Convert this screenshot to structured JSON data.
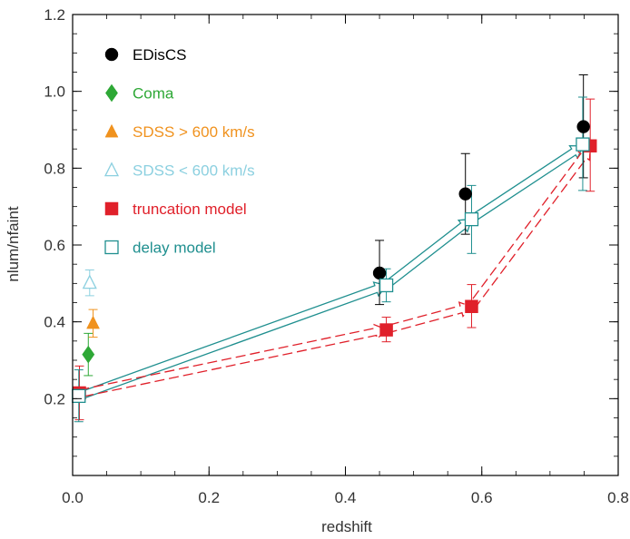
{
  "chart_data": {
    "type": "scatter",
    "xlabel": "redshift",
    "ylabel": "nlum/nfaint",
    "xlim": [
      0.0,
      0.8
    ],
    "ylim": [
      0.0,
      1.2
    ],
    "x_ticks": [
      0.0,
      0.2,
      0.4,
      0.6,
      0.8
    ],
    "x_tick_labels": [
      "0.0",
      "0.2",
      "0.4",
      "0.6",
      "0.8"
    ],
    "y_ticks": [
      0.2,
      0.4,
      0.6,
      0.8,
      1.0,
      1.2
    ],
    "y_tick_labels": [
      "0.2",
      "0.4",
      "0.6",
      "0.8",
      "1.0",
      "1.2"
    ],
    "grid": false,
    "legend_position": "top-left",
    "series": [
      {
        "name": "EDisCS",
        "marker": "filled-circle",
        "color": "#000000",
        "points": [
          {
            "x": 0.45,
            "y": 0.527,
            "ylo": 0.445,
            "yhi": 0.612
          },
          {
            "x": 0.576,
            "y": 0.733,
            "ylo": 0.628,
            "yhi": 0.838
          },
          {
            "x": 0.749,
            "y": 0.908,
            "ylo": 0.775,
            "yhi": 1.043
          }
        ]
      },
      {
        "name": "Coma",
        "marker": "filled-diamond",
        "color": "#2ea836",
        "points": [
          {
            "x": 0.023,
            "y": 0.315,
            "ylo": 0.26,
            "yhi": 0.37
          }
        ]
      },
      {
        "name": "SDSS > 600 km/s",
        "marker": "filled-triangle",
        "color": "#f0921e",
        "points": [
          {
            "x": 0.03,
            "y": 0.397,
            "ylo": 0.36,
            "yhi": 0.432
          }
        ]
      },
      {
        "name": "SDSS < 600 km/s",
        "marker": "open-triangle",
        "color": "#8cd0e0",
        "points": [
          {
            "x": 0.025,
            "y": 0.502,
            "ylo": 0.468,
            "yhi": 0.535
          }
        ]
      },
      {
        "name": "truncation model",
        "marker": "filled-square",
        "color": "#e0202a",
        "points": [
          {
            "x": 0.01,
            "y": 0.215,
            "ylo": 0.145,
            "yhi": 0.285
          },
          {
            "x": 0.46,
            "y": 0.379,
            "ylo": 0.348,
            "yhi": 0.412
          },
          {
            "x": 0.585,
            "y": 0.44,
            "ylo": 0.385,
            "yhi": 0.497
          },
          {
            "x": 0.759,
            "y": 0.858,
            "ylo": 0.74,
            "yhi": 0.98
          }
        ]
      },
      {
        "name": "delay model",
        "marker": "open-square",
        "color": "#1f8f8f",
        "points": [
          {
            "x": 0.009,
            "y": 0.207,
            "ylo": 0.14,
            "yhi": 0.275
          },
          {
            "x": 0.46,
            "y": 0.495,
            "ylo": 0.452,
            "yhi": 0.538
          },
          {
            "x": 0.585,
            "y": 0.667,
            "ylo": 0.578,
            "yhi": 0.755
          },
          {
            "x": 0.748,
            "y": 0.862,
            "ylo": 0.742,
            "yhi": 0.985
          }
        ]
      }
    ],
    "arrow_paths": [
      {
        "name": "delay model",
        "color": "#1f8f8f",
        "style": "solid-double",
        "points": [
          [
            0.015,
            0.21
          ],
          [
            0.46,
            0.495
          ],
          [
            0.585,
            0.667
          ],
          [
            0.748,
            0.858
          ]
        ]
      },
      {
        "name": "truncation model",
        "color": "#e0202a",
        "style": "dashed-double",
        "points": [
          [
            0.015,
            0.215
          ],
          [
            0.46,
            0.38
          ],
          [
            0.585,
            0.44
          ],
          [
            0.759,
            0.855
          ]
        ]
      }
    ]
  }
}
